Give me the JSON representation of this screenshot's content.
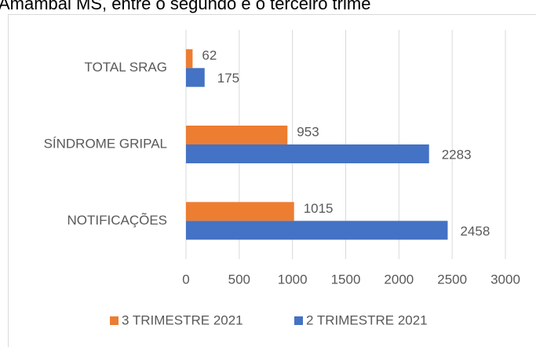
{
  "chart_data": {
    "type": "bar",
    "orientation": "horizontal",
    "title": "Amambai MS, entre o segundo e o terceiro trime",
    "categories": [
      "TOTAL SRAG",
      "SÍNDROME GRIPAL",
      "NOTIFICAÇÕES"
    ],
    "series": [
      {
        "name": "3 TRIMESTRE 2021",
        "color": "#ed7d31",
        "values": [
          62,
          953,
          1015
        ]
      },
      {
        "name": "2 TRIMESTRE 2021",
        "color": "#4472c4",
        "values": [
          175,
          2283,
          2458
        ]
      }
    ],
    "xlim": [
      0,
      3000
    ],
    "xticks": [
      0,
      500,
      1000,
      1500,
      2000,
      2500,
      3000
    ],
    "grid": true,
    "legend": "bottom"
  }
}
